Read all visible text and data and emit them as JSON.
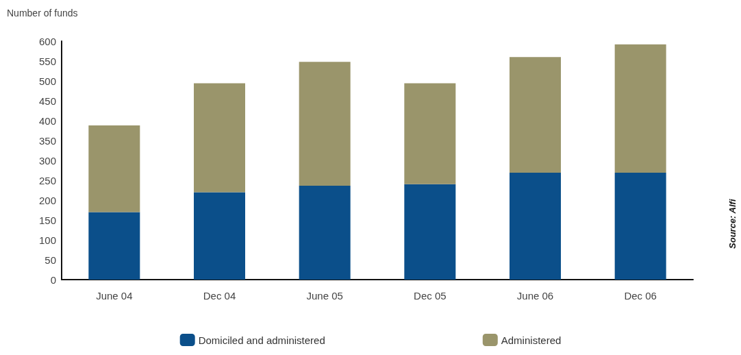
{
  "chart_data": {
    "type": "bar",
    "ylabel": "Number of funds",
    "categories": [
      "June 04",
      "Dec 04",
      "June 05",
      "Dec 05",
      "June 06",
      "Dec 06"
    ],
    "series": [
      {
        "name": "Domiciled and administered",
        "color": "#0b4f8a",
        "values": [
          170,
          220,
          236,
          240,
          269,
          269
        ]
      },
      {
        "name": "Administered",
        "color": "#9a956b",
        "values": [
          218,
          274,
          312,
          254,
          291,
          323
        ]
      }
    ],
    "stacked": true,
    "ylim": [
      0,
      600
    ],
    "yticks": [
      0,
      50,
      100,
      150,
      200,
      250,
      300,
      350,
      400,
      450,
      500,
      550,
      600
    ],
    "grid": false,
    "legend": "bottom",
    "annotations": [
      "Source: Alfi"
    ]
  }
}
